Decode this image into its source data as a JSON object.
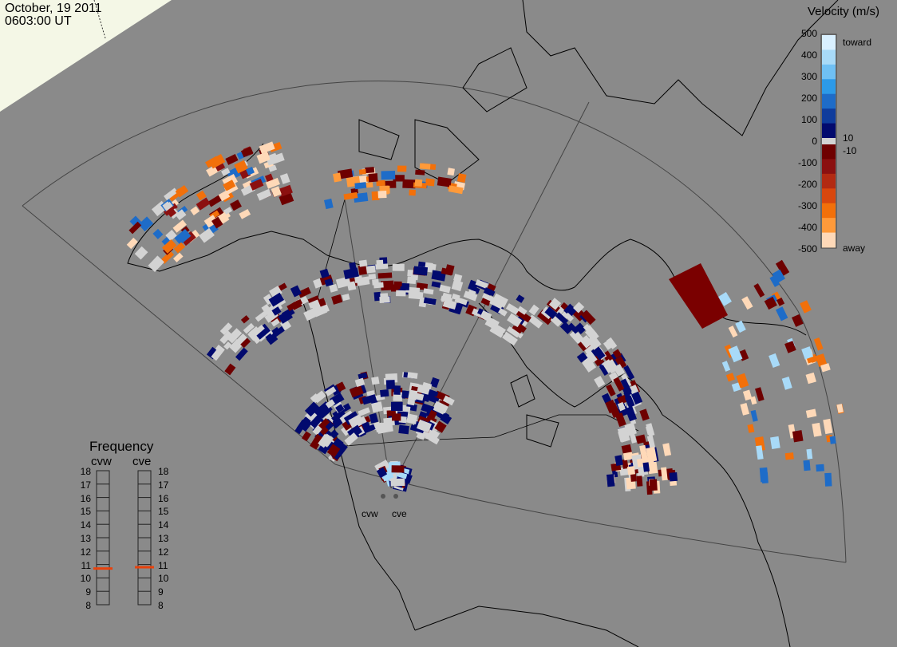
{
  "header": {
    "date": "October, 19 2011",
    "time": "0603:00 UT"
  },
  "colorbar": {
    "title": "Velocity (m/s)",
    "ticks": [
      "500",
      "400",
      "300",
      "200",
      "100",
      "0",
      "-100",
      "-200",
      "-300",
      "-400",
      "-500"
    ],
    "inner_labels": [
      "10",
      "-10"
    ],
    "end_labels": {
      "toward": "toward",
      "away": "away"
    },
    "colors": {
      "toward": [
        "#d9f0ff",
        "#a8daf8",
        "#6fc0f4",
        "#2c9ae8",
        "#1e6cc8",
        "#0f3c9c",
        "#020a6e"
      ],
      "away": [
        "#6e0000",
        "#8b1010",
        "#b22a12",
        "#d8470e",
        "#f2700a",
        "#ff9a3a",
        "#ffd9b8"
      ],
      "ground_scatter": "#d3d3d3"
    }
  },
  "frequency": {
    "title": "Frequency",
    "columns": [
      "cvw",
      "cve"
    ],
    "scale": [
      "18",
      "17",
      "16",
      "15",
      "14",
      "13",
      "12",
      "11",
      "10",
      "9",
      "8"
    ],
    "cvw_value_mhz": 10.7,
    "cve_value_mhz": 10.8,
    "marker_color": "#e8420c"
  },
  "radars": [
    {
      "name": "cvw"
    },
    {
      "name": "cve"
    }
  ],
  "map": {
    "background": "#8a8a8a",
    "daylight": "#f4f7e6",
    "coast_color": "#000000"
  }
}
